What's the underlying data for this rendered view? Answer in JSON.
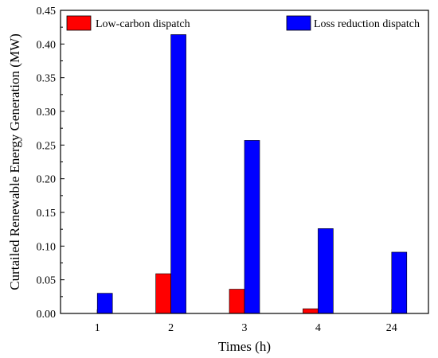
{
  "chart_data": {
    "type": "bar",
    "categories": [
      "1",
      "2",
      "3",
      "4",
      "24"
    ],
    "series": [
      {
        "name": "Low-carbon dispatch",
        "color": "#ff0000",
        "values": [
          0.0,
          0.059,
          0.036,
          0.007,
          0.0
        ]
      },
      {
        "name": "Loss reduction dispatch",
        "color": "#0000ff",
        "values": [
          0.03,
          0.414,
          0.257,
          0.126,
          0.091
        ]
      }
    ],
    "xlabel": "Times (h)",
    "ylabel": "Curtailed Renewable Energy Generation (MW)",
    "ylim": [
      0,
      0.45
    ],
    "yticks": [
      "0.00",
      "0.05",
      "0.10",
      "0.15",
      "0.20",
      "0.25",
      "0.30",
      "0.35",
      "0.40",
      "0.45"
    ],
    "grid": false,
    "legend_position": "top"
  }
}
